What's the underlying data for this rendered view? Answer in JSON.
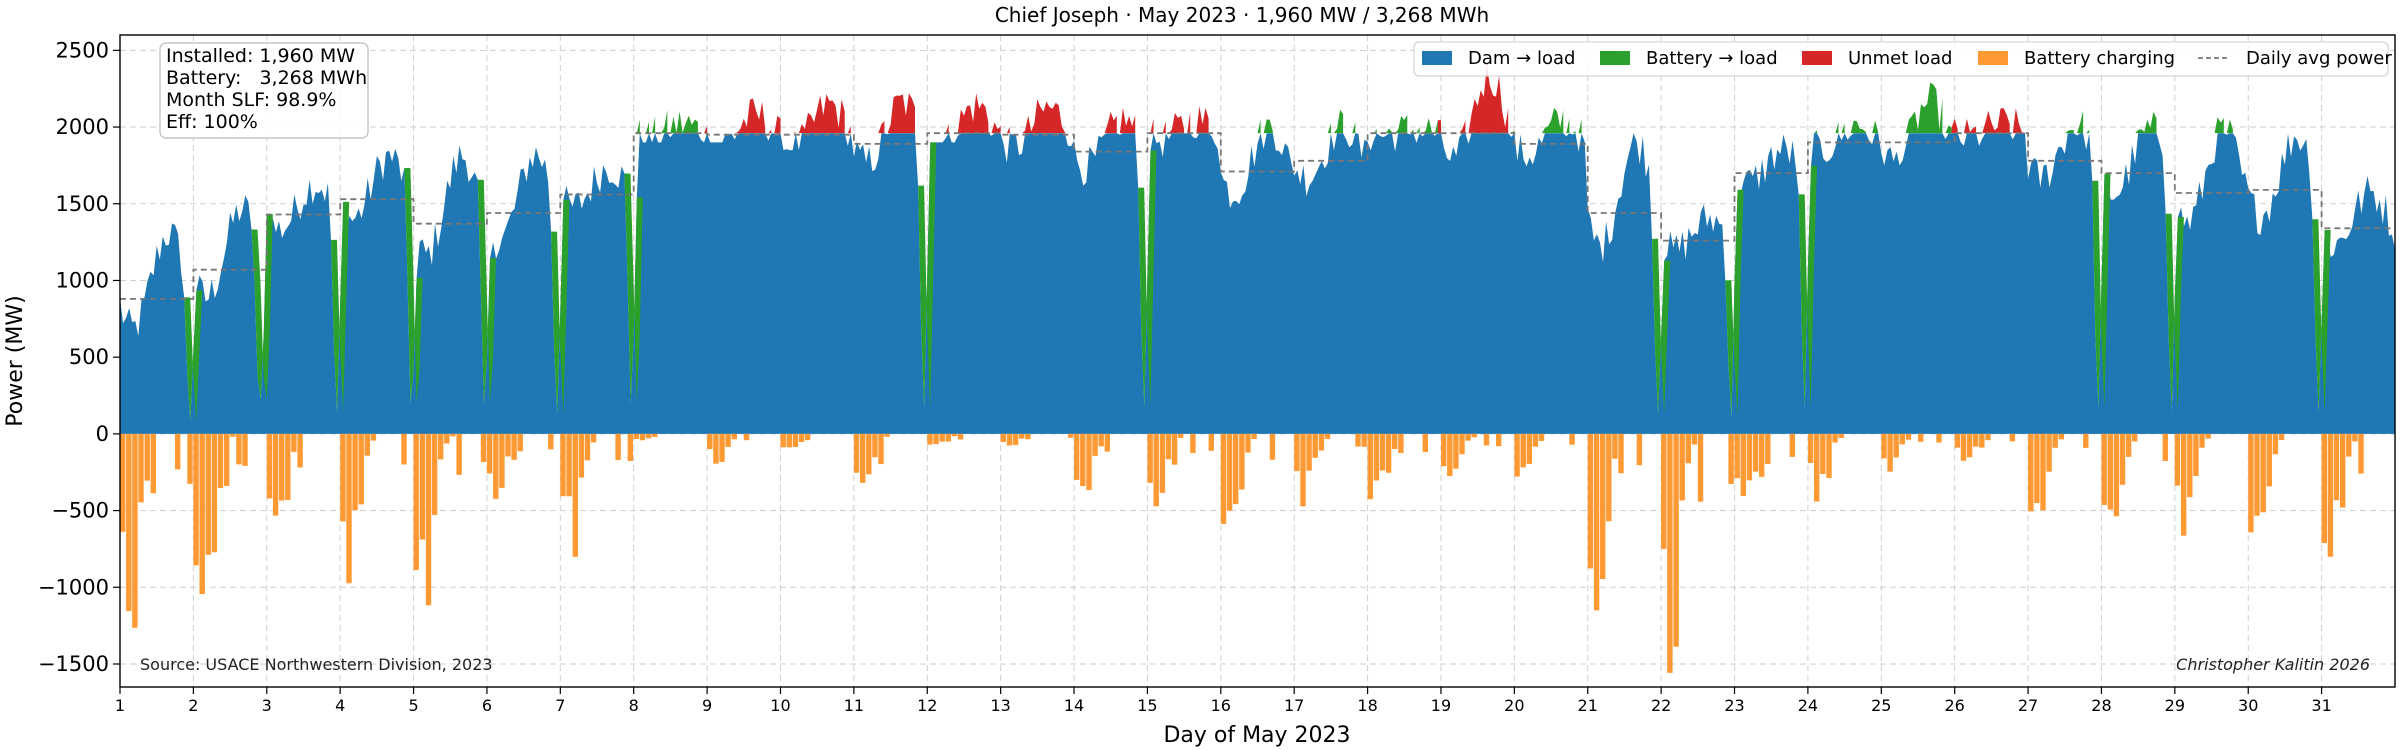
{
  "chart_data": {
    "type": "area",
    "title": "Chief Joseph  ·  May 2023  ·  1,960 MW / 3,268 MWh",
    "xlabel": "Day of May 2023",
    "ylabel": "Power (MW)",
    "xlim": [
      1,
      32
    ],
    "ylim": [
      -1650,
      2600
    ],
    "yticks": [
      -1500,
      -1000,
      -500,
      0,
      500,
      1000,
      1500,
      2000,
      2500
    ],
    "ytick_labels": [
      "−1500",
      "−1000",
      "−500",
      "0",
      "500",
      "1000",
      "1500",
      "2000",
      "2500"
    ],
    "xticks": [
      1,
      2,
      3,
      4,
      5,
      6,
      7,
      8,
      9,
      10,
      11,
      12,
      13,
      14,
      15,
      16,
      17,
      18,
      19,
      20,
      21,
      22,
      23,
      24,
      25,
      26,
      27,
      28,
      29,
      30,
      31
    ],
    "xtick_labels": [
      "1",
      "2",
      "3",
      "4",
      "5",
      "6",
      "7",
      "8",
      "9",
      "10",
      "11",
      "12",
      "13",
      "14",
      "15",
      "16",
      "17",
      "18",
      "19",
      "20",
      "21",
      "22",
      "23",
      "24",
      "25",
      "26",
      "27",
      "28",
      "29",
      "30",
      "31"
    ],
    "grid": true,
    "legend_position": "top-right",
    "colors": {
      "dam": "#1f77b4",
      "battery": "#2ca02c",
      "unmet": "#d62728",
      "charging": "#ff9933",
      "avg": "#777777"
    },
    "legend": [
      {
        "name": "Dam → load",
        "kind": "area",
        "color": "#1f77b4"
      },
      {
        "name": "Battery → load",
        "kind": "area",
        "color": "#2ca02c"
      },
      {
        "name": "Unmet load",
        "kind": "area",
        "color": "#d62728"
      },
      {
        "name": "Battery charging",
        "kind": "area",
        "color": "#ff9933"
      },
      {
        "name": "Daily avg power",
        "kind": "dashed-line",
        "color": "#777777"
      }
    ],
    "info_box": [
      "Installed: 1,960 MW",
      "Battery:   3,268 MWh",
      "Month SLF: 98.9%",
      "Eff: 100%"
    ],
    "source_note": "Source: USACE Northwestern Division, 2023",
    "author_note": "Christopher Kalitin 2026",
    "capacity_mw": 1960,
    "daily": [
      {
        "day": 1,
        "avg": 880,
        "peak": 1450,
        "min": 560,
        "charge": 1350
      },
      {
        "day": 2,
        "avg": 1070,
        "peak": 1600,
        "min": 0,
        "charge": 1180
      },
      {
        "day": 3,
        "avg": 1430,
        "peak": 1700,
        "min": 0,
        "charge": 850
      },
      {
        "day": 4,
        "avg": 1530,
        "peak": 1900,
        "min": 0,
        "charge": 880
      },
      {
        "day": 5,
        "avg": 1370,
        "peak": 1960,
        "min": 0,
        "charge": 1080
      },
      {
        "day": 6,
        "avg": 1440,
        "peak": 1950,
        "min": 0,
        "charge": 500
      },
      {
        "day": 7,
        "avg": 1560,
        "peak": 1800,
        "min": 0,
        "charge": 730
      },
      {
        "day": 8,
        "avg": 1960,
        "peak": 2040,
        "min": 1900,
        "charge": 40
      },
      {
        "day": 9,
        "avg": 1950,
        "peak": 2120,
        "min": 1900,
        "charge": 200
      },
      {
        "day": 10,
        "avg": 1950,
        "peak": 2210,
        "min": 1850,
        "charge": 120
      },
      {
        "day": 11,
        "avg": 1890,
        "peak": 2250,
        "min": 1600,
        "charge": 380
      },
      {
        "day": 12,
        "avg": 1960,
        "peak": 2200,
        "min": 1900,
        "charge": 100
      },
      {
        "day": 13,
        "avg": 1950,
        "peak": 2180,
        "min": 1750,
        "charge": 100
      },
      {
        "day": 14,
        "avg": 1840,
        "peak": 2120,
        "min": 1550,
        "charge": 400
      },
      {
        "day": 15,
        "avg": 1960,
        "peak": 2080,
        "min": 1300,
        "charge": 500
      },
      {
        "day": 16,
        "avg": 1710,
        "peak": 2100,
        "min": 1250,
        "charge": 700
      },
      {
        "day": 17,
        "avg": 1780,
        "peak": 2080,
        "min": 1200,
        "charge": 480
      },
      {
        "day": 18,
        "avg": 1960,
        "peak": 2000,
        "min": 1500,
        "charge": 500
      },
      {
        "day": 19,
        "avg": 1960,
        "peak": 2450,
        "min": 1600,
        "charge": 320
      },
      {
        "day": 20,
        "avg": 1890,
        "peak": 2100,
        "min": 1500,
        "charge": 250
      },
      {
        "day": 21,
        "avg": 1440,
        "peak": 2050,
        "min": 560,
        "charge": 1200
      },
      {
        "day": 22,
        "avg": 1260,
        "peak": 1450,
        "min": 0,
        "charge": 1430
      },
      {
        "day": 23,
        "avg": 1700,
        "peak": 1900,
        "min": 0,
        "charge": 560
      },
      {
        "day": 24,
        "avg": 1900,
        "peak": 2050,
        "min": 1450,
        "charge": 350
      },
      {
        "day": 25,
        "avg": 1900,
        "peak": 2250,
        "min": 1750,
        "charge": 220
      },
      {
        "day": 26,
        "avg": 1960,
        "peak": 2040,
        "min": 1650,
        "charge": 180
      },
      {
        "day": 27,
        "avg": 1780,
        "peak": 2100,
        "min": 1450,
        "charge": 500
      },
      {
        "day": 28,
        "avg": 1700,
        "peak": 2080,
        "min": 1100,
        "charge": 700
      },
      {
        "day": 29,
        "avg": 1570,
        "peak": 2120,
        "min": 0,
        "charge": 680
      },
      {
        "day": 30,
        "avg": 1590,
        "peak": 2060,
        "min": 0,
        "charge": 650
      },
      {
        "day": 31,
        "avg": 1340,
        "peak": 1650,
        "min": 0,
        "charge": 920
      }
    ],
    "battery_dips": [
      1.95,
      2.9,
      3.95,
      4.97,
      5.97,
      6.95,
      7.97,
      11.95,
      14.95,
      21.95,
      22.95,
      23.95,
      27.95,
      28.95,
      30.95
    ]
  }
}
